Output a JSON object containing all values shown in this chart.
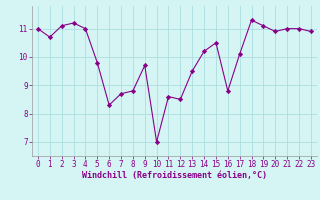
{
  "x": [
    0,
    1,
    2,
    3,
    4,
    5,
    6,
    7,
    8,
    9,
    10,
    11,
    12,
    13,
    14,
    15,
    16,
    17,
    18,
    19,
    20,
    21,
    22,
    23
  ],
  "y": [
    11.0,
    10.7,
    11.1,
    11.2,
    11.0,
    9.8,
    8.3,
    8.7,
    8.8,
    9.7,
    7.0,
    8.6,
    8.5,
    9.5,
    10.2,
    10.5,
    8.8,
    10.1,
    11.3,
    11.1,
    10.9,
    11.0,
    11.0,
    10.9
  ],
  "line_color": "#880088",
  "marker": "D",
  "marker_size": 2.2,
  "bg_color": "#d5f5f5",
  "grid_color": "#aadede",
  "xlabel": "Windchill (Refroidissement éolien,°C)",
  "xlabel_color": "#880088",
  "xlabel_fontsize": 6.0,
  "tick_fontsize": 5.5,
  "tick_color": "#880088",
  "ylim": [
    6.5,
    11.8
  ],
  "yticks": [
    7,
    8,
    9,
    10,
    11
  ],
  "xlim": [
    -0.5,
    23.5
  ]
}
